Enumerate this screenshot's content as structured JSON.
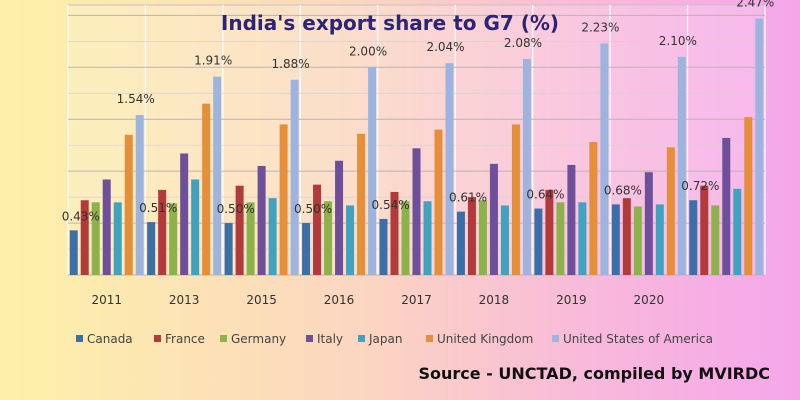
{
  "chart_data": {
    "type": "bar",
    "title": "India's export share to G7 (%)",
    "categories": [
      "2011",
      "2013",
      "2015",
      "2016",
      "2017",
      "2018",
      "2019",
      "2020",
      ""
    ],
    "series": [
      {
        "name": "Canada",
        "color": "#3b6fa8",
        "values": [
          0.43,
          0.51,
          0.5,
          0.5,
          0.54,
          0.61,
          0.64,
          0.68,
          0.72
        ]
      },
      {
        "name": "France",
        "color": "#b23a3a",
        "values": [
          0.72,
          0.82,
          0.86,
          0.87,
          0.8,
          0.75,
          0.82,
          0.74,
          0.86
        ]
      },
      {
        "name": "Germany",
        "color": "#8cb24a",
        "values": [
          0.7,
          0.69,
          0.7,
          0.71,
          0.71,
          0.72,
          0.7,
          0.66,
          0.67
        ]
      },
      {
        "name": "Italy",
        "color": "#6e4f9a",
        "values": [
          0.92,
          1.17,
          1.05,
          1.1,
          1.22,
          1.07,
          1.06,
          0.99,
          1.32
        ]
      },
      {
        "name": "Japan",
        "color": "#3fa3c0",
        "values": [
          0.7,
          0.92,
          0.74,
          0.67,
          0.71,
          0.67,
          0.7,
          0.68,
          0.83
        ]
      },
      {
        "name": "United Kingdom",
        "color": "#e58f3b",
        "values": [
          1.35,
          1.65,
          1.45,
          1.36,
          1.4,
          1.45,
          1.28,
          1.23,
          1.52
        ]
      },
      {
        "name": "United States of America",
        "color": "#9db5de",
        "values": [
          1.54,
          1.91,
          1.88,
          2.0,
          2.04,
          2.08,
          2.23,
          2.1,
          2.47
        ]
      }
    ],
    "data_labels": [
      "0.43%",
      "1.54%",
      "0.51%",
      "1.91%",
      "0.50%",
      "1.88%",
      "0.50%",
      "2.00%",
      "0.54%",
      "2.04%",
      "0.61%",
      "2.08%",
      "0.64%",
      "2.23%",
      "0.68%",
      "2.10%",
      "0.72%",
      "2.47%"
    ],
    "ylim": [
      0,
      2.6
    ],
    "grid": true,
    "legend_position": "bottom"
  },
  "source": "Source - UNCTAD, compiled by MVIRDC"
}
